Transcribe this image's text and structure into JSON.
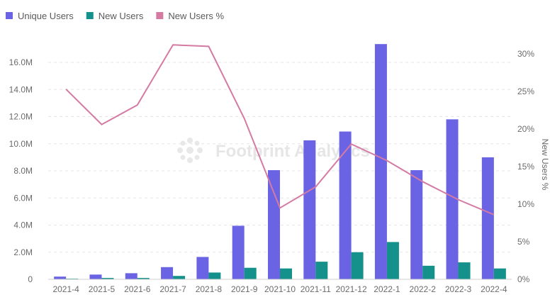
{
  "watermark": "Footprint Analytics",
  "chart_data": {
    "type": "bar",
    "categories": [
      "2021-4",
      "2021-5",
      "2021-6",
      "2021-7",
      "2021-8",
      "2021-9",
      "2021-10",
      "2021-11",
      "2021-12",
      "2022-1",
      "2022-2",
      "2022-3",
      "2022-4"
    ],
    "series": [
      {
        "name": "Unique Users",
        "type": "bar",
        "axis": "left",
        "color": "#6a63e3",
        "values": [
          200000,
          350000,
          450000,
          900000,
          1650000,
          3950000,
          8050000,
          10250000,
          10900000,
          17350000,
          8050000,
          11800000,
          9000000
        ]
      },
      {
        "name": "New Users",
        "type": "bar",
        "axis": "left",
        "color": "#14918a",
        "values": [
          50000,
          100000,
          100000,
          250000,
          500000,
          850000,
          800000,
          1300000,
          2000000,
          2750000,
          1000000,
          1250000,
          800000
        ]
      },
      {
        "name": "New Users %",
        "type": "line",
        "axis": "right",
        "color": "#d47aa3",
        "values": [
          25.3,
          20.6,
          23.2,
          31.2,
          31.0,
          21.4,
          9.5,
          12.3,
          18.0,
          15.8,
          13.0,
          10.6,
          8.6
        ]
      }
    ],
    "y_left": {
      "ticks": [
        "0",
        "2.0M",
        "4.0M",
        "6.0M",
        "8.0M",
        "10.0M",
        "12.0M",
        "14.0M",
        "16.0M"
      ],
      "max": 16000000
    },
    "y_right": {
      "label": "New Users %",
      "ticks": [
        "0%",
        "5%",
        "10%",
        "15%",
        "20%",
        "25%",
        "30%"
      ],
      "max": 30
    },
    "legend_position": "top-left",
    "grid": "horizontal-dashed"
  }
}
